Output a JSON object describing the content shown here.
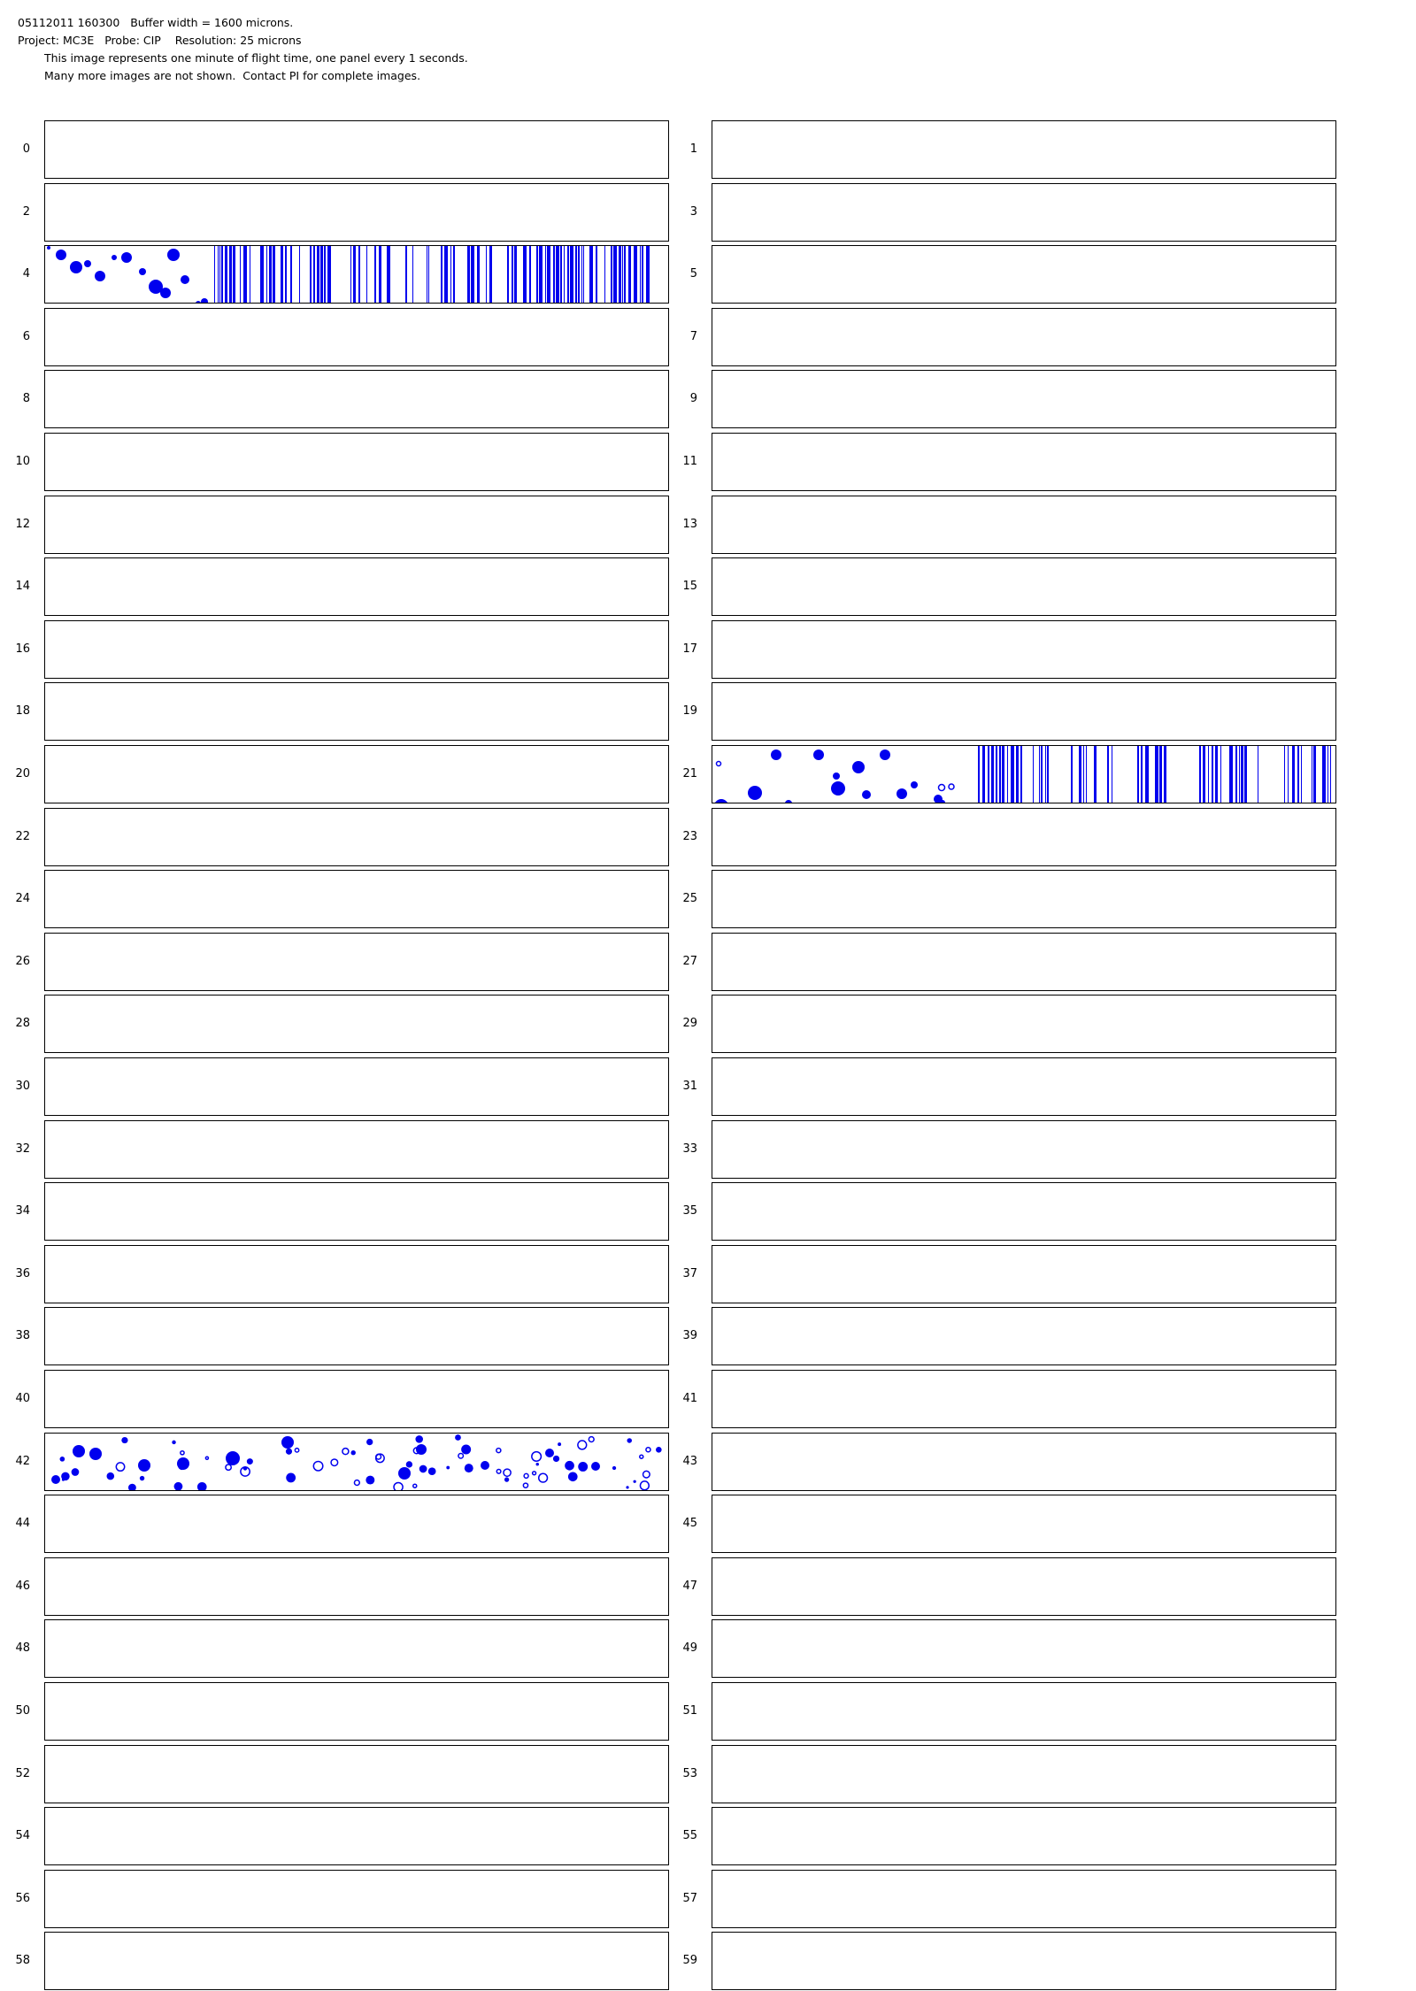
{
  "header": {
    "line1": "05112011 160300   Buffer width = 1600 microns.",
    "line2": "Project: MC3E   Probe: CIP    Resolution: 25 microns",
    "line3": "This image represents one minute of flight time, one panel every 1 seconds.",
    "line4": "Many more images are not shown.  Contact PI for complete images."
  },
  "panels": [
    {
      "label": "0"
    },
    {
      "label": "1"
    },
    {
      "label": "2"
    },
    {
      "label": "3"
    },
    {
      "label": "4"
    },
    {
      "label": "5"
    },
    {
      "label": "6"
    },
    {
      "label": "7"
    },
    {
      "label": "8"
    },
    {
      "label": "9"
    },
    {
      "label": "10"
    },
    {
      "label": "11"
    },
    {
      "label": "12"
    },
    {
      "label": "13"
    },
    {
      "label": "14"
    },
    {
      "label": "15"
    },
    {
      "label": "16"
    },
    {
      "label": "17"
    },
    {
      "label": "18"
    },
    {
      "label": "19"
    },
    {
      "label": "20"
    },
    {
      "label": "21"
    },
    {
      "label": "22"
    },
    {
      "label": "23"
    },
    {
      "label": "24"
    },
    {
      "label": "25"
    },
    {
      "label": "26"
    },
    {
      "label": "27"
    },
    {
      "label": "28"
    },
    {
      "label": "29"
    },
    {
      "label": "30"
    },
    {
      "label": "31"
    },
    {
      "label": "32"
    },
    {
      "label": "33"
    },
    {
      "label": "34"
    },
    {
      "label": "35"
    },
    {
      "label": "36"
    },
    {
      "label": "37"
    },
    {
      "label": "38"
    },
    {
      "label": "39"
    },
    {
      "label": "40"
    },
    {
      "label": "41"
    },
    {
      "label": "42"
    },
    {
      "label": "43"
    },
    {
      "label": "44"
    },
    {
      "label": "45"
    },
    {
      "label": "46"
    },
    {
      "label": "47"
    },
    {
      "label": "48"
    },
    {
      "label": "49"
    },
    {
      "label": "50"
    },
    {
      "label": "51"
    },
    {
      "label": "52"
    },
    {
      "label": "53"
    },
    {
      "label": "54"
    },
    {
      "label": "55"
    },
    {
      "label": "56"
    },
    {
      "label": "57"
    },
    {
      "label": "58"
    },
    {
      "label": "59"
    }
  ],
  "particle_color": "#0000ee"
}
